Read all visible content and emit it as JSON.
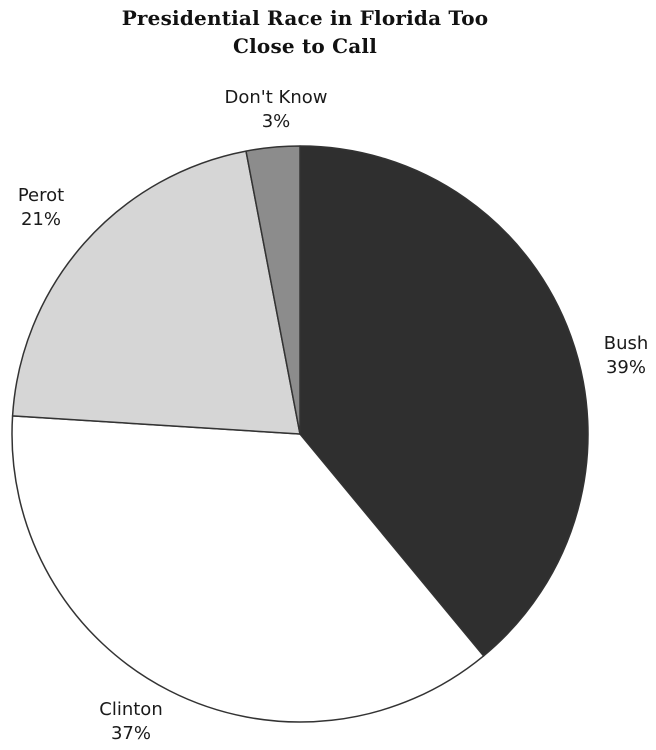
{
  "chart_data": {
    "type": "pie",
    "title": "Presidential Race in Florida Too Close to Call",
    "title_lines": [
      "Presidential Race in Florida Too",
      "Close to Call"
    ],
    "slices": [
      {
        "label": "Bush",
        "value": 39,
        "value_label": "39%",
        "color": "#2f2f2f"
      },
      {
        "label": "Clinton",
        "value": 37,
        "value_label": "37%",
        "color": "#ffffff"
      },
      {
        "label": "Perot",
        "value": 21,
        "value_label": "21%",
        "color": "#d6d6d6"
      },
      {
        "label": "Don't Know",
        "value": 3,
        "value_label": "3%",
        "color": "#8c8c8c"
      }
    ],
    "start": "12 o'clock",
    "direction": "clockwise",
    "legend": "none"
  }
}
